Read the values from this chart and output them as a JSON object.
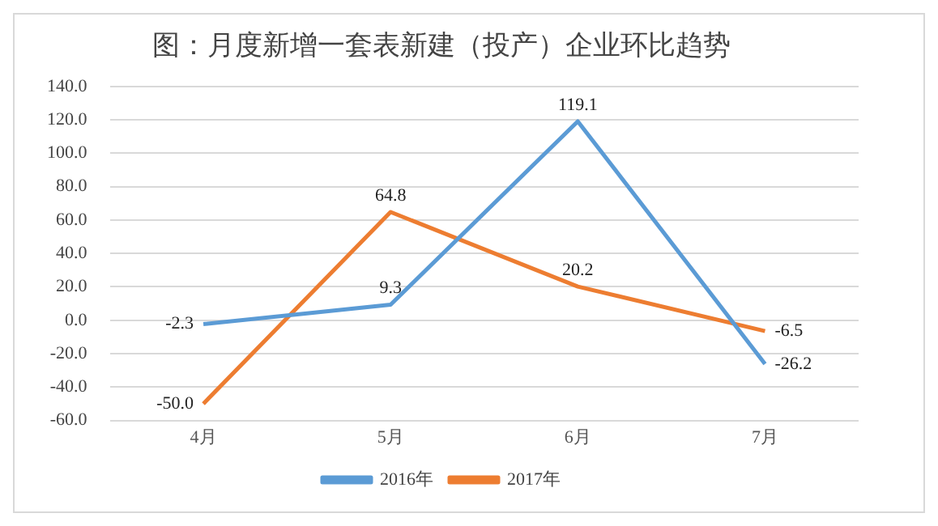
{
  "chart_data": {
    "type": "line",
    "title": "图：月度新增一套表新建（投产）企业环比趋势",
    "categories": [
      "4月",
      "5月",
      "6月",
      "7月"
    ],
    "series": [
      {
        "name": "2016年",
        "color": "#5b9bd5",
        "values": [
          -2.3,
          9.3,
          119.1,
          -26.2
        ],
        "value_labels": [
          "-2.3",
          "9.3",
          "119.1",
          "-26.2"
        ]
      },
      {
        "name": "2017年",
        "color": "#ed7d31",
        "values": [
          -50.0,
          64.8,
          20.2,
          -6.5
        ],
        "value_labels": [
          "-50.0",
          "64.8",
          "20.2",
          "-6.5"
        ]
      }
    ],
    "ylim": [
      -60,
      140
    ],
    "yticks": [
      {
        "value": -60,
        "label": "-60.0"
      },
      {
        "value": -40,
        "label": "-40.0"
      },
      {
        "value": -20,
        "label": "-20.0"
      },
      {
        "value": 0,
        "label": "0.0"
      },
      {
        "value": 20,
        "label": "20.0"
      },
      {
        "value": 40,
        "label": "40.0"
      },
      {
        "value": 60,
        "label": "60.0"
      },
      {
        "value": 80,
        "label": "80.0"
      },
      {
        "value": 100,
        "label": "100.0"
      },
      {
        "value": 120,
        "label": "120.0"
      },
      {
        "value": 140,
        "label": "140.0"
      }
    ],
    "grid": "y",
    "legend": "bottom",
    "marker": "none",
    "line_style": "solid"
  }
}
